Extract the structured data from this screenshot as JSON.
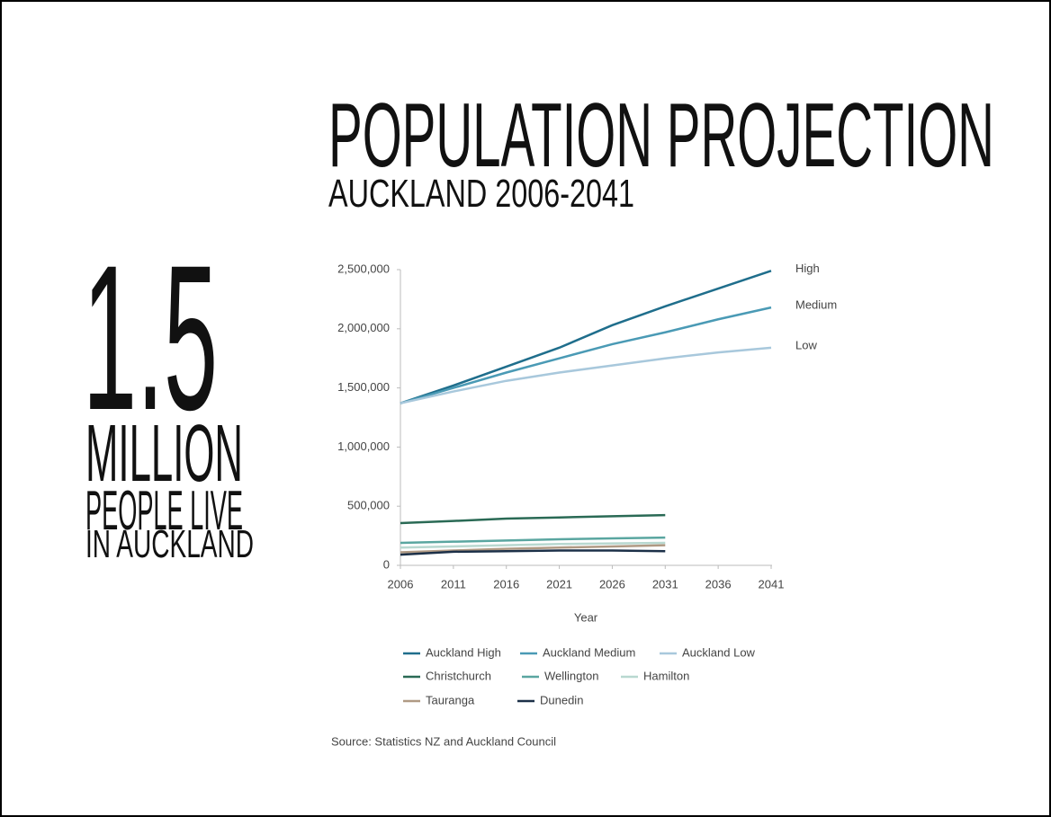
{
  "slide": {
    "title": "POPULATION PROJECTION",
    "subtitle": "AUCKLAND 2006-2041",
    "big_number": "1.5",
    "big_unit": "MILLION",
    "caption": [
      "PEOPLE LIVE",
      "IN AUCKLAND"
    ]
  },
  "chart_data": {
    "type": "line",
    "x": [
      2006,
      2011,
      2016,
      2021,
      2026,
      2031,
      2036,
      2041
    ],
    "xlim": [
      2006,
      2041
    ],
    "xticks": [
      2006,
      2011,
      2016,
      2021,
      2026,
      2031,
      2036,
      2041
    ],
    "ylim": [
      0,
      2500000
    ],
    "yticks": [
      0,
      {
        "value": 500000,
        "label": "500,000"
      },
      {
        "value": 1000000,
        "label": "1,000,000"
      },
      {
        "value": 1500000,
        "label": "1,500,000"
      },
      {
        "value": 2000000,
        "label": "2,000,000"
      },
      {
        "value": 2500000,
        "label": "2,500,000"
      }
    ],
    "xlabel": "Year",
    "source": "Source: Statistics NZ and Auckland Council",
    "annotations": [
      {
        "text": "High",
        "series": 0
      },
      {
        "text": "Medium",
        "series": 1
      },
      {
        "text": "Low",
        "series": 2
      }
    ],
    "series": [
      {
        "name": "Auckland High",
        "color": "#1f6e8c",
        "values": [
          1370000,
          1520000,
          1680000,
          1840000,
          2030000,
          2190000,
          2340000,
          2490000
        ]
      },
      {
        "name": "Auckland Medium",
        "color": "#4a9ab5",
        "values": [
          1370000,
          1500000,
          1630000,
          1750000,
          1870000,
          1970000,
          2080000,
          2180000
        ]
      },
      {
        "name": "Auckland Low",
        "color": "#a8c8dc",
        "values": [
          1370000,
          1470000,
          1560000,
          1630000,
          1690000,
          1750000,
          1800000,
          1840000
        ]
      },
      {
        "name": "Christchurch",
        "color": "#2a6a55",
        "values": [
          357000,
          375000,
          395000,
          405000,
          415000,
          425000,
          null,
          null
        ]
      },
      {
        "name": "Wellington",
        "color": "#5aa6a0",
        "values": [
          190000,
          200000,
          210000,
          220000,
          228000,
          235000,
          null,
          null
        ]
      },
      {
        "name": "Hamilton",
        "color": "#b8d8d0",
        "values": [
          150000,
          160000,
          170000,
          180000,
          185000,
          190000,
          null,
          null
        ]
      },
      {
        "name": "Tauranga",
        "color": "#b09a84",
        "values": [
          110000,
          125000,
          140000,
          150000,
          160000,
          170000,
          null,
          null
        ]
      },
      {
        "name": "Dunedin",
        "color": "#1c3048",
        "values": [
          90000,
          115000,
          120000,
          125000,
          125000,
          120000,
          null,
          null
        ]
      }
    ]
  }
}
